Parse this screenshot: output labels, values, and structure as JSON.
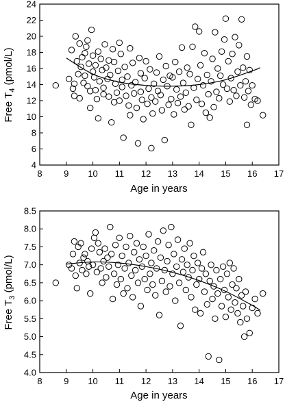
{
  "chart_data": [
    {
      "type": "scatter",
      "xlabel": "Age in years",
      "ylabel_main": "Free T",
      "ylabel_sub": "4",
      "ylabel_unit": " (pmol/L)",
      "xlim": [
        8,
        17
      ],
      "ylim": [
        4,
        24
      ],
      "xticks": [
        8,
        9,
        10,
        11,
        12,
        13,
        14,
        15,
        16,
        17
      ],
      "yticks": [
        4,
        6,
        8,
        10,
        12,
        14,
        16,
        18,
        20,
        22,
        24
      ],
      "fit_line": {
        "x": [
          9.0,
          10.0,
          11.0,
          12.0,
          13.0,
          14.0,
          15.0,
          16.0,
          16.3
        ],
        "y": [
          17.3,
          15.3,
          14.3,
          13.9,
          13.8,
          14.0,
          14.6,
          15.7,
          16.1
        ]
      },
      "points": [
        [
          8.6,
          13.9
        ],
        [
          9.1,
          14.7
        ],
        [
          9.2,
          18.3
        ],
        [
          9.25,
          13.5
        ],
        [
          9.3,
          14.1
        ],
        [
          9.3,
          12.6
        ],
        [
          9.35,
          20.0
        ],
        [
          9.4,
          16.9
        ],
        [
          9.45,
          15.3
        ],
        [
          9.5,
          19.1
        ],
        [
          9.5,
          12.3
        ],
        [
          9.55,
          16.2
        ],
        [
          9.6,
          17.4
        ],
        [
          9.65,
          14.2
        ],
        [
          9.7,
          17.9
        ],
        [
          9.7,
          15.1
        ],
        [
          9.75,
          18.7
        ],
        [
          9.8,
          19.5
        ],
        [
          9.8,
          13.8
        ],
        [
          9.85,
          16.6
        ],
        [
          9.9,
          13.2
        ],
        [
          9.9,
          11.1
        ],
        [
          9.95,
          20.8
        ],
        [
          10.0,
          17.6
        ],
        [
          10.0,
          15.6
        ],
        [
          10.05,
          14.9
        ],
        [
          10.1,
          13.3
        ],
        [
          10.1,
          16.4
        ],
        [
          10.15,
          12.2
        ],
        [
          10.2,
          9.8
        ],
        [
          10.2,
          18.1
        ],
        [
          10.25,
          14.4
        ],
        [
          10.3,
          17.2
        ],
        [
          10.35,
          15.8
        ],
        [
          10.4,
          13.6
        ],
        [
          10.4,
          12.8
        ],
        [
          10.45,
          19.0
        ],
        [
          10.5,
          16.1
        ],
        [
          10.55,
          14.7
        ],
        [
          10.6,
          17.0
        ],
        [
          10.6,
          12.5
        ],
        [
          10.65,
          15.2
        ],
        [
          10.7,
          9.3
        ],
        [
          10.75,
          18.4
        ],
        [
          10.8,
          16.8
        ],
        [
          10.8,
          11.8
        ],
        [
          10.85,
          14.1
        ],
        [
          10.9,
          13.0
        ],
        [
          10.95,
          15.7
        ],
        [
          11.0,
          19.2
        ],
        [
          11.0,
          12.0
        ],
        [
          11.05,
          17.8
        ],
        [
          11.1,
          14.6
        ],
        [
          11.1,
          13.7
        ],
        [
          11.15,
          7.4
        ],
        [
          11.2,
          16.2
        ],
        [
          11.25,
          12.6
        ],
        [
          11.3,
          15.0
        ],
        [
          11.35,
          11.4
        ],
        [
          11.4,
          18.5
        ],
        [
          11.4,
          10.2
        ],
        [
          11.45,
          13.9
        ],
        [
          11.5,
          16.7
        ],
        [
          11.55,
          12.9
        ],
        [
          11.6,
          14.3
        ],
        [
          11.65,
          11.1
        ],
        [
          11.7,
          6.7
        ],
        [
          11.75,
          17.3
        ],
        [
          11.8,
          15.4
        ],
        [
          11.8,
          13.1
        ],
        [
          11.85,
          12.1
        ],
        [
          11.9,
          9.7
        ],
        [
          11.95,
          14.8
        ],
        [
          12.0,
          16.9
        ],
        [
          12.05,
          11.6
        ],
        [
          12.1,
          13.5
        ],
        [
          12.15,
          15.9
        ],
        [
          12.2,
          12.4
        ],
        [
          12.2,
          6.1
        ],
        [
          12.25,
          10.4
        ],
        [
          12.3,
          14.1
        ],
        [
          12.35,
          11.9
        ],
        [
          12.4,
          15.5
        ],
        [
          12.45,
          13.2
        ],
        [
          12.5,
          17.5
        ],
        [
          12.55,
          12.7
        ],
        [
          12.6,
          10.8
        ],
        [
          12.65,
          14.6
        ],
        [
          12.7,
          7.1
        ],
        [
          12.75,
          16.3
        ],
        [
          12.8,
          13.8
        ],
        [
          12.85,
          11.5
        ],
        [
          12.9,
          15.1
        ],
        [
          12.95,
          12.2
        ],
        [
          13.0,
          14.9
        ],
        [
          13.05,
          10.3
        ],
        [
          13.1,
          16.8
        ],
        [
          13.15,
          13.4
        ],
        [
          13.2,
          11.7
        ],
        [
          13.25,
          15.6
        ],
        [
          13.3,
          12.5
        ],
        [
          13.35,
          18.6
        ],
        [
          13.4,
          14.2
        ],
        [
          13.45,
          10.9
        ],
        [
          13.5,
          13.0
        ],
        [
          13.55,
          16.1
        ],
        [
          13.6,
          11.3
        ],
        [
          13.65,
          15.3
        ],
        [
          13.7,
          9.0
        ],
        [
          13.75,
          18.7
        ],
        [
          13.8,
          13.6
        ],
        [
          13.85,
          21.2
        ],
        [
          13.9,
          12.1
        ],
        [
          13.95,
          14.7
        ],
        [
          14.0,
          20.6
        ],
        [
          14.05,
          16.4
        ],
        [
          14.1,
          11.6
        ],
        [
          14.15,
          13.9
        ],
        [
          14.2,
          17.9
        ],
        [
          14.25,
          10.5
        ],
        [
          14.3,
          15.2
        ],
        [
          14.35,
          12.8
        ],
        [
          14.4,
          9.9
        ],
        [
          14.45,
          14.4
        ],
        [
          14.5,
          17.2
        ],
        [
          14.55,
          11.2
        ],
        [
          14.6,
          20.5
        ],
        [
          14.65,
          13.1
        ],
        [
          14.7,
          16.0
        ],
        [
          14.75,
          12.3
        ],
        [
          14.8,
          15.1
        ],
        [
          14.85,
          18.1
        ],
        [
          14.9,
          14.0
        ],
        [
          14.95,
          19.6
        ],
        [
          15.0,
          22.2
        ],
        [
          15.05,
          13.5
        ],
        [
          15.1,
          16.9
        ],
        [
          15.15,
          11.9
        ],
        [
          15.2,
          14.8
        ],
        [
          15.25,
          17.8
        ],
        [
          15.3,
          13.3
        ],
        [
          15.35,
          19.9
        ],
        [
          15.4,
          12.6
        ],
        [
          15.45,
          15.6
        ],
        [
          15.5,
          18.9
        ],
        [
          15.55,
          13.9
        ],
        [
          15.6,
          22.1
        ],
        [
          15.65,
          16.1
        ],
        [
          15.7,
          12.4
        ],
        [
          15.75,
          14.4
        ],
        [
          15.8,
          17.5
        ],
        [
          15.8,
          9.0
        ],
        [
          15.85,
          13.2
        ],
        [
          15.9,
          15.8
        ],
        [
          15.95,
          11.5
        ],
        [
          16.0,
          13.9
        ],
        [
          16.1,
          12.2
        ],
        [
          16.2,
          12.0
        ],
        [
          16.4,
          10.2
        ]
      ]
    },
    {
      "type": "scatter",
      "xlabel": "Age in years",
      "ylabel_main": "Free T",
      "ylabel_sub": "3",
      "ylabel_unit": " (pmol/L)",
      "xlim": [
        8,
        17
      ],
      "ylim": [
        4.0,
        8.5
      ],
      "xticks": [
        8,
        9,
        10,
        11,
        12,
        13,
        14,
        15,
        16,
        17
      ],
      "yticks": [
        4.0,
        4.5,
        5.0,
        5.5,
        6.0,
        6.5,
        7.0,
        7.5,
        8.0,
        8.5
      ],
      "fit_line": {
        "x": [
          9.0,
          10.0,
          11.0,
          12.0,
          13.0,
          14.0,
          15.0,
          16.0,
          16.3
        ],
        "y": [
          7.02,
          7.08,
          7.05,
          6.95,
          6.79,
          6.56,
          6.26,
          5.87,
          5.73
        ]
      },
      "points": [
        [
          8.6,
          6.5
        ],
        [
          9.1,
          7.0
        ],
        [
          9.2,
          6.9
        ],
        [
          9.25,
          7.3
        ],
        [
          9.3,
          7.65
        ],
        [
          9.35,
          6.7
        ],
        [
          9.4,
          6.35
        ],
        [
          9.45,
          7.5
        ],
        [
          9.5,
          7.05
        ],
        [
          9.55,
          7.6
        ],
        [
          9.6,
          6.85
        ],
        [
          9.65,
          7.2
        ],
        [
          9.7,
          7.3
        ],
        [
          9.75,
          6.75
        ],
        [
          9.8,
          7.1
        ],
        [
          9.85,
          6.95
        ],
        [
          9.9,
          6.2
        ],
        [
          9.95,
          7.45
        ],
        [
          10.0,
          7.0
        ],
        [
          10.05,
          7.75
        ],
        [
          10.1,
          7.9
        ],
        [
          10.15,
          6.8
        ],
        [
          10.2,
          7.6
        ],
        [
          10.25,
          7.35
        ],
        [
          10.3,
          6.9
        ],
        [
          10.35,
          6.5
        ],
        [
          10.4,
          7.1
        ],
        [
          10.45,
          7.45
        ],
        [
          10.5,
          6.65
        ],
        [
          10.55,
          7.2
        ],
        [
          10.6,
          6.95
        ],
        [
          10.65,
          8.05
        ],
        [
          10.7,
          7.3
        ],
        [
          10.75,
          6.05
        ],
        [
          10.8,
          6.75
        ],
        [
          10.85,
          7.55
        ],
        [
          10.9,
          6.45
        ],
        [
          10.95,
          7.0
        ],
        [
          11.0,
          7.75
        ],
        [
          11.05,
          6.6
        ],
        [
          11.1,
          7.25
        ],
        [
          11.15,
          6.2
        ],
        [
          11.2,
          6.9
        ],
        [
          11.25,
          7.5
        ],
        [
          11.3,
          6.35
        ],
        [
          11.35,
          7.05
        ],
        [
          11.4,
          7.8
        ],
        [
          11.45,
          6.7
        ],
        [
          11.5,
          6.1
        ],
        [
          11.55,
          7.35
        ],
        [
          11.6,
          6.85
        ],
        [
          11.65,
          7.6
        ],
        [
          11.7,
          6.5
        ],
        [
          11.75,
          7.15
        ],
        [
          11.8,
          5.85
        ],
        [
          11.85,
          6.95
        ],
        [
          11.9,
          7.5
        ],
        [
          11.95,
          6.6
        ],
        [
          12.0,
          7.25
        ],
        [
          12.05,
          6.3
        ],
        [
          12.1,
          7.85
        ],
        [
          12.15,
          6.75
        ],
        [
          12.2,
          7.05
        ],
        [
          12.25,
          6.45
        ],
        [
          12.3,
          7.4
        ],
        [
          12.35,
          6.15
        ],
        [
          12.4,
          6.9
        ],
        [
          12.45,
          7.65
        ],
        [
          12.5,
          5.6
        ],
        [
          12.55,
          7.2
        ],
        [
          12.6,
          6.55
        ],
        [
          12.65,
          7.95
        ],
        [
          12.7,
          6.85
        ],
        [
          12.75,
          6.25
        ],
        [
          12.8,
          7.1
        ],
        [
          12.85,
          7.55
        ],
        [
          12.9,
          6.4
        ],
        [
          12.95,
          8.05
        ],
        [
          13.0,
          6.75
        ],
        [
          13.05,
          7.3
        ],
        [
          13.1,
          6.0
        ],
        [
          13.15,
          6.95
        ],
        [
          13.2,
          7.7
        ],
        [
          13.25,
          6.5
        ],
        [
          13.3,
          5.3
        ],
        [
          13.35,
          7.15
        ],
        [
          13.4,
          6.8
        ],
        [
          13.45,
          7.45
        ],
        [
          13.5,
          6.3
        ],
        [
          13.55,
          7.0
        ],
        [
          13.6,
          6.65
        ],
        [
          13.65,
          7.6
        ],
        [
          13.7,
          6.1
        ],
        [
          13.75,
          6.85
        ],
        [
          13.8,
          7.25
        ],
        [
          13.85,
          5.75
        ],
        [
          13.9,
          6.45
        ],
        [
          13.95,
          7.05
        ],
        [
          14.0,
          6.6
        ],
        [
          14.05,
          5.65
        ],
        [
          14.1,
          6.9
        ],
        [
          14.15,
          7.35
        ],
        [
          14.2,
          6.25
        ],
        [
          14.25,
          6.75
        ],
        [
          14.3,
          5.9
        ],
        [
          14.35,
          4.45
        ],
        [
          14.4,
          6.55
        ],
        [
          14.45,
          7.0
        ],
        [
          14.5,
          6.05
        ],
        [
          14.55,
          6.4
        ],
        [
          14.6,
          5.5
        ],
        [
          14.65,
          6.85
        ],
        [
          14.7,
          6.2
        ],
        [
          14.75,
          4.35
        ],
        [
          14.8,
          6.6
        ],
        [
          14.85,
          5.85
        ],
        [
          14.9,
          6.95
        ],
        [
          14.95,
          6.3
        ],
        [
          15.0,
          5.55
        ],
        [
          15.05,
          6.75
        ],
        [
          15.1,
          6.1
        ],
        [
          15.15,
          7.05
        ],
        [
          15.2,
          5.75
        ],
        [
          15.25,
          6.45
        ],
        [
          15.3,
          6.9
        ],
        [
          15.35,
          5.95
        ],
        [
          15.4,
          6.35
        ],
        [
          15.45,
          5.65
        ],
        [
          15.5,
          6.6
        ],
        [
          15.55,
          5.4
        ],
        [
          15.6,
          6.15
        ],
        [
          15.65,
          5.85
        ],
        [
          15.7,
          5.0
        ],
        [
          15.75,
          6.25
        ],
        [
          15.8,
          5.5
        ],
        [
          15.9,
          5.1
        ],
        [
          16.0,
          5.8
        ],
        [
          16.1,
          6.05
        ],
        [
          16.2,
          5.65
        ],
        [
          16.4,
          6.2
        ]
      ]
    }
  ]
}
